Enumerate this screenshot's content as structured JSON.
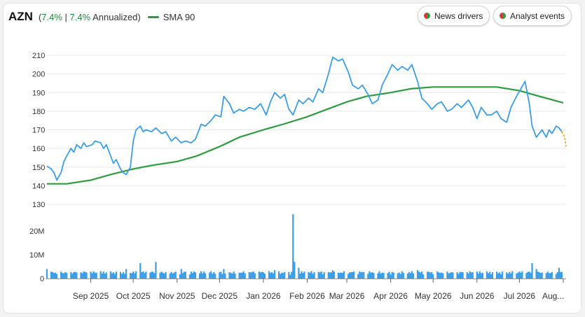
{
  "header": {
    "ticker": "AZN",
    "perf_open": "(",
    "change_pct": "7.4%",
    "separator": " | ",
    "annualized_pct": "7.4%",
    "annualized_label": " Annualized)",
    "sma_label": "SMA 90"
  },
  "buttons": {
    "news": "News drivers",
    "analyst": "Analyst events"
  },
  "colors": {
    "price": "#3a9ee8",
    "sma": "#2a9d3e",
    "forecast": "#f0a020",
    "volume": "#3a9ee8",
    "positive": "#1f8a3a"
  },
  "chart_data": {
    "type": "line",
    "y_ticks": [
      "210",
      "200",
      "190",
      "180",
      "170",
      "160",
      "150",
      "140",
      "130"
    ],
    "ylim": [
      130,
      215
    ],
    "volume_ticks": [
      "20M",
      "10M",
      "0"
    ],
    "volume_lim": [
      0,
      28
    ],
    "x_ticks": [
      "Sep 2025",
      "Oct 2025",
      "Nov 2025",
      "Dec 2025",
      "Jan 2026",
      "Feb 2026",
      "Mar 2026",
      "Apr 2026",
      "May 2026",
      "Jun 2026",
      "Jul 2026",
      "Aug..."
    ],
    "x_tick_dates": [
      "2025-09-01",
      "2025-10-01",
      "2025-11-01",
      "2025-12-01",
      "2026-01-01",
      "2026-02-01",
      "2026-03-01",
      "2026-04-01",
      "2026-05-01",
      "2026-06-01",
      "2026-07-01",
      "2026-08-01"
    ],
    "xlim": [
      "2025-08-01",
      "2026-08-03"
    ],
    "series": [
      {
        "name": "AZN",
        "values": [
          [
            "2025-08-01",
            150.5
          ],
          [
            "2025-08-04",
            149
          ],
          [
            "2025-08-06",
            147
          ],
          [
            "2025-08-08",
            143
          ],
          [
            "2025-08-11",
            147
          ],
          [
            "2025-08-13",
            153
          ],
          [
            "2025-08-15",
            156
          ],
          [
            "2025-08-18",
            160
          ],
          [
            "2025-08-20",
            158
          ],
          [
            "2025-08-22",
            162
          ],
          [
            "2025-08-25",
            160
          ],
          [
            "2025-08-27",
            163
          ],
          [
            "2025-08-29",
            161
          ],
          [
            "2025-09-02",
            162
          ],
          [
            "2025-09-04",
            164
          ],
          [
            "2025-09-08",
            163
          ],
          [
            "2025-09-10",
            160
          ],
          [
            "2025-09-12",
            162
          ],
          [
            "2025-09-15",
            156
          ],
          [
            "2025-09-17",
            152
          ],
          [
            "2025-09-19",
            154
          ],
          [
            "2025-09-22",
            149
          ],
          [
            "2025-09-24",
            147
          ],
          [
            "2025-09-26",
            146
          ],
          [
            "2025-09-29",
            150
          ],
          [
            "2025-10-01",
            164
          ],
          [
            "2025-10-03",
            170
          ],
          [
            "2025-10-06",
            172
          ],
          [
            "2025-10-08",
            169
          ],
          [
            "2025-10-10",
            170
          ],
          [
            "2025-10-14",
            169
          ],
          [
            "2025-10-17",
            171
          ],
          [
            "2025-10-21",
            168
          ],
          [
            "2025-10-24",
            169
          ],
          [
            "2025-10-28",
            164
          ],
          [
            "2025-10-31",
            166
          ],
          [
            "2025-11-04",
            163
          ],
          [
            "2025-11-07",
            164
          ],
          [
            "2025-11-11",
            163
          ],
          [
            "2025-11-14",
            165
          ],
          [
            "2025-11-18",
            173
          ],
          [
            "2025-11-21",
            172
          ],
          [
            "2025-11-25",
            175
          ],
          [
            "2025-11-28",
            178
          ],
          [
            "2025-12-02",
            177
          ],
          [
            "2025-12-04",
            188
          ],
          [
            "2025-12-08",
            184
          ],
          [
            "2025-12-11",
            179
          ],
          [
            "2025-12-15",
            181
          ],
          [
            "2025-12-18",
            180
          ],
          [
            "2025-12-22",
            182
          ],
          [
            "2025-12-26",
            181
          ],
          [
            "2025-12-30",
            184
          ],
          [
            "2026-01-03",
            178
          ],
          [
            "2026-01-06",
            185
          ],
          [
            "2026-01-09",
            190
          ],
          [
            "2026-01-13",
            187
          ],
          [
            "2026-01-16",
            189
          ],
          [
            "2026-01-19",
            181
          ],
          [
            "2026-01-22",
            178
          ],
          [
            "2026-01-26",
            186
          ],
          [
            "2026-01-29",
            184
          ],
          [
            "2026-02-02",
            187
          ],
          [
            "2026-02-05",
            185
          ],
          [
            "2026-02-09",
            192
          ],
          [
            "2026-02-12",
            190
          ],
          [
            "2026-02-16",
            200
          ],
          [
            "2026-02-19",
            209
          ],
          [
            "2026-02-23",
            207
          ],
          [
            "2026-02-26",
            208
          ],
          [
            "2026-03-02",
            201
          ],
          [
            "2026-03-05",
            194
          ],
          [
            "2026-03-09",
            192
          ],
          [
            "2026-03-12",
            194
          ],
          [
            "2026-03-16",
            189
          ],
          [
            "2026-03-19",
            184
          ],
          [
            "2026-03-23",
            186
          ],
          [
            "2026-03-26",
            194
          ],
          [
            "2026-03-30",
            200
          ],
          [
            "2026-04-02",
            205
          ],
          [
            "2026-04-06",
            202
          ],
          [
            "2026-04-09",
            204
          ],
          [
            "2026-04-13",
            202
          ],
          [
            "2026-04-16",
            205
          ],
          [
            "2026-04-20",
            196
          ],
          [
            "2026-04-23",
            187
          ],
          [
            "2026-04-27",
            184
          ],
          [
            "2026-04-30",
            181
          ],
          [
            "2026-05-04",
            184
          ],
          [
            "2026-05-07",
            185
          ],
          [
            "2026-05-11",
            180
          ],
          [
            "2026-05-14",
            181
          ],
          [
            "2026-05-18",
            184
          ],
          [
            "2026-05-21",
            182
          ],
          [
            "2026-05-26",
            186
          ],
          [
            "2026-05-29",
            182
          ],
          [
            "2026-06-01",
            176
          ],
          [
            "2026-06-04",
            182
          ],
          [
            "2026-06-08",
            178
          ],
          [
            "2026-06-11",
            178
          ],
          [
            "2026-06-15",
            180
          ],
          [
            "2026-06-18",
            176
          ],
          [
            "2026-06-22",
            174
          ],
          [
            "2026-06-25",
            182
          ],
          [
            "2026-06-29",
            188
          ],
          [
            "2026-07-02",
            192
          ],
          [
            "2026-07-05",
            196
          ],
          [
            "2026-07-08",
            184
          ],
          [
            "2026-07-10",
            172
          ],
          [
            "2026-07-13",
            166
          ],
          [
            "2026-07-15",
            168
          ],
          [
            "2026-07-17",
            170
          ],
          [
            "2026-07-20",
            166
          ],
          [
            "2026-07-22",
            170
          ],
          [
            "2026-07-24",
            168
          ],
          [
            "2026-07-27",
            172
          ],
          [
            "2026-07-29",
            171
          ],
          [
            "2026-07-31",
            169
          ]
        ]
      },
      {
        "name": "SMA 90",
        "values": [
          [
            "2025-08-01",
            141
          ],
          [
            "2025-08-15",
            141
          ],
          [
            "2025-09-01",
            143
          ],
          [
            "2025-09-15",
            146
          ],
          [
            "2025-10-01",
            149
          ],
          [
            "2025-10-15",
            151
          ],
          [
            "2025-11-01",
            153
          ],
          [
            "2025-11-15",
            156
          ],
          [
            "2025-12-01",
            161
          ],
          [
            "2025-12-15",
            166
          ],
          [
            "2026-01-01",
            170
          ],
          [
            "2026-01-15",
            173
          ],
          [
            "2026-02-01",
            177
          ],
          [
            "2026-02-15",
            181
          ],
          [
            "2026-03-01",
            185
          ],
          [
            "2026-03-15",
            188
          ],
          [
            "2026-04-01",
            190
          ],
          [
            "2026-04-15",
            192
          ],
          [
            "2026-05-01",
            193
          ],
          [
            "2026-05-15",
            193
          ],
          [
            "2026-06-01",
            193
          ],
          [
            "2026-06-15",
            193
          ],
          [
            "2026-07-01",
            191
          ],
          [
            "2026-07-15",
            188
          ],
          [
            "2026-08-01",
            184.5
          ]
        ]
      }
    ],
    "forecast": [
      [
        "2026-07-31",
        169
      ],
      [
        "2026-08-02",
        166
      ],
      [
        "2026-08-03",
        161
      ]
    ],
    "volume": {
      "baseline": 2.3,
      "spikes": [
        [
          "2025-08-01",
          4
        ],
        [
          "2025-09-26",
          4
        ],
        [
          "2025-10-06",
          6.5
        ],
        [
          "2025-10-17",
          7
        ],
        [
          "2025-11-04",
          4
        ],
        [
          "2025-12-04",
          4
        ],
        [
          "2026-01-09",
          3.5
        ],
        [
          "2026-01-22",
          27
        ],
        [
          "2026-01-23",
          7
        ],
        [
          "2026-01-26",
          4.5
        ],
        [
          "2026-02-19",
          3.5
        ],
        [
          "2026-04-20",
          3.5
        ],
        [
          "2026-07-10",
          6.5
        ],
        [
          "2026-07-13",
          4
        ],
        [
          "2026-07-29",
          4.5
        ]
      ]
    }
  }
}
